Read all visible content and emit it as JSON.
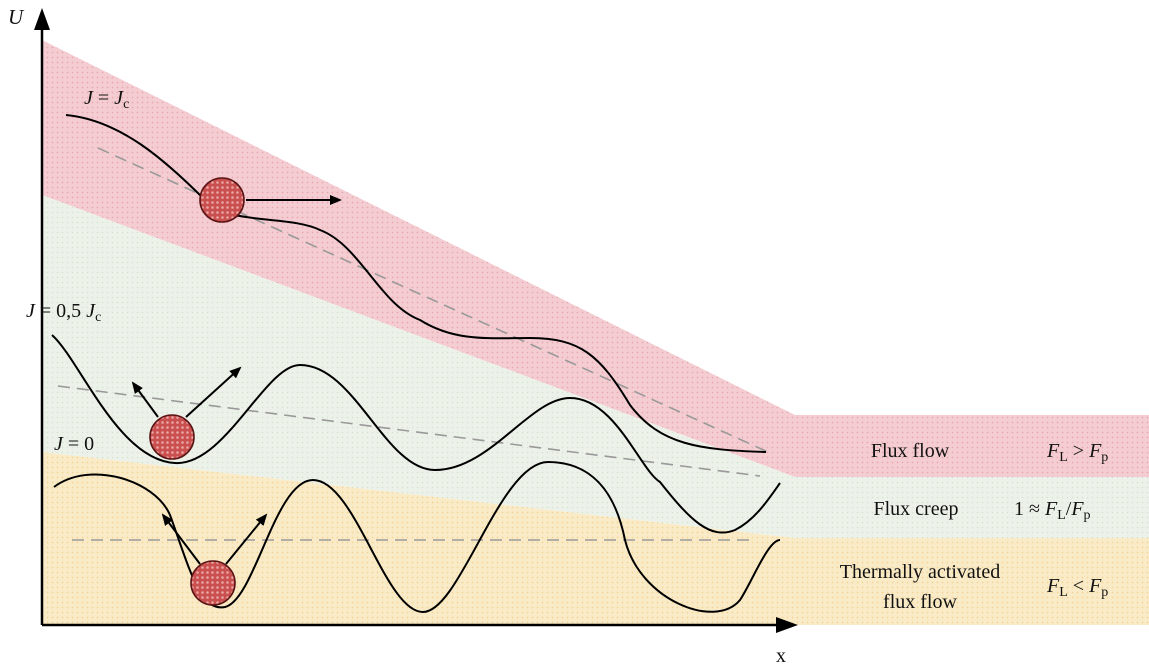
{
  "axes": {
    "y_label": "U",
    "x_label": "x"
  },
  "curves": {
    "jc": {
      "label_lhs": "J",
      "label_eq": " = ",
      "label_rhs": "J",
      "label_sub": "c"
    },
    "half": {
      "label_lhs": "J",
      "label_eq": " = 0,5 ",
      "label_rhs": "J",
      "label_sub": "c"
    },
    "zero": {
      "label_lhs": "J",
      "label_eq": " = 0"
    }
  },
  "regimes": [
    {
      "name": "Flux flow",
      "condition": {
        "a": "F",
        "a_sub": "L",
        "op": " > ",
        "b": "F",
        "b_sub": "p"
      },
      "color": "#f3c9cf"
    },
    {
      "name": "Flux creep",
      "condition": {
        "prefix": "1 ≈ ",
        "a": "F",
        "a_sub": "L",
        "op": "/",
        "b": "F",
        "b_sub": "p"
      },
      "color": "#e7efe4"
    },
    {
      "name_line1": "Thermally activated",
      "name_line2": "flux flow",
      "condition": {
        "a": "F",
        "a_sub": "L",
        "op": " < ",
        "b": "F",
        "b_sub": "p"
      },
      "color": "#f8e6bf"
    }
  ],
  "colors": {
    "particle": "#c9504f",
    "particle_stroke": "#5a1414",
    "curve": "#000000",
    "dashed": "#999999"
  }
}
